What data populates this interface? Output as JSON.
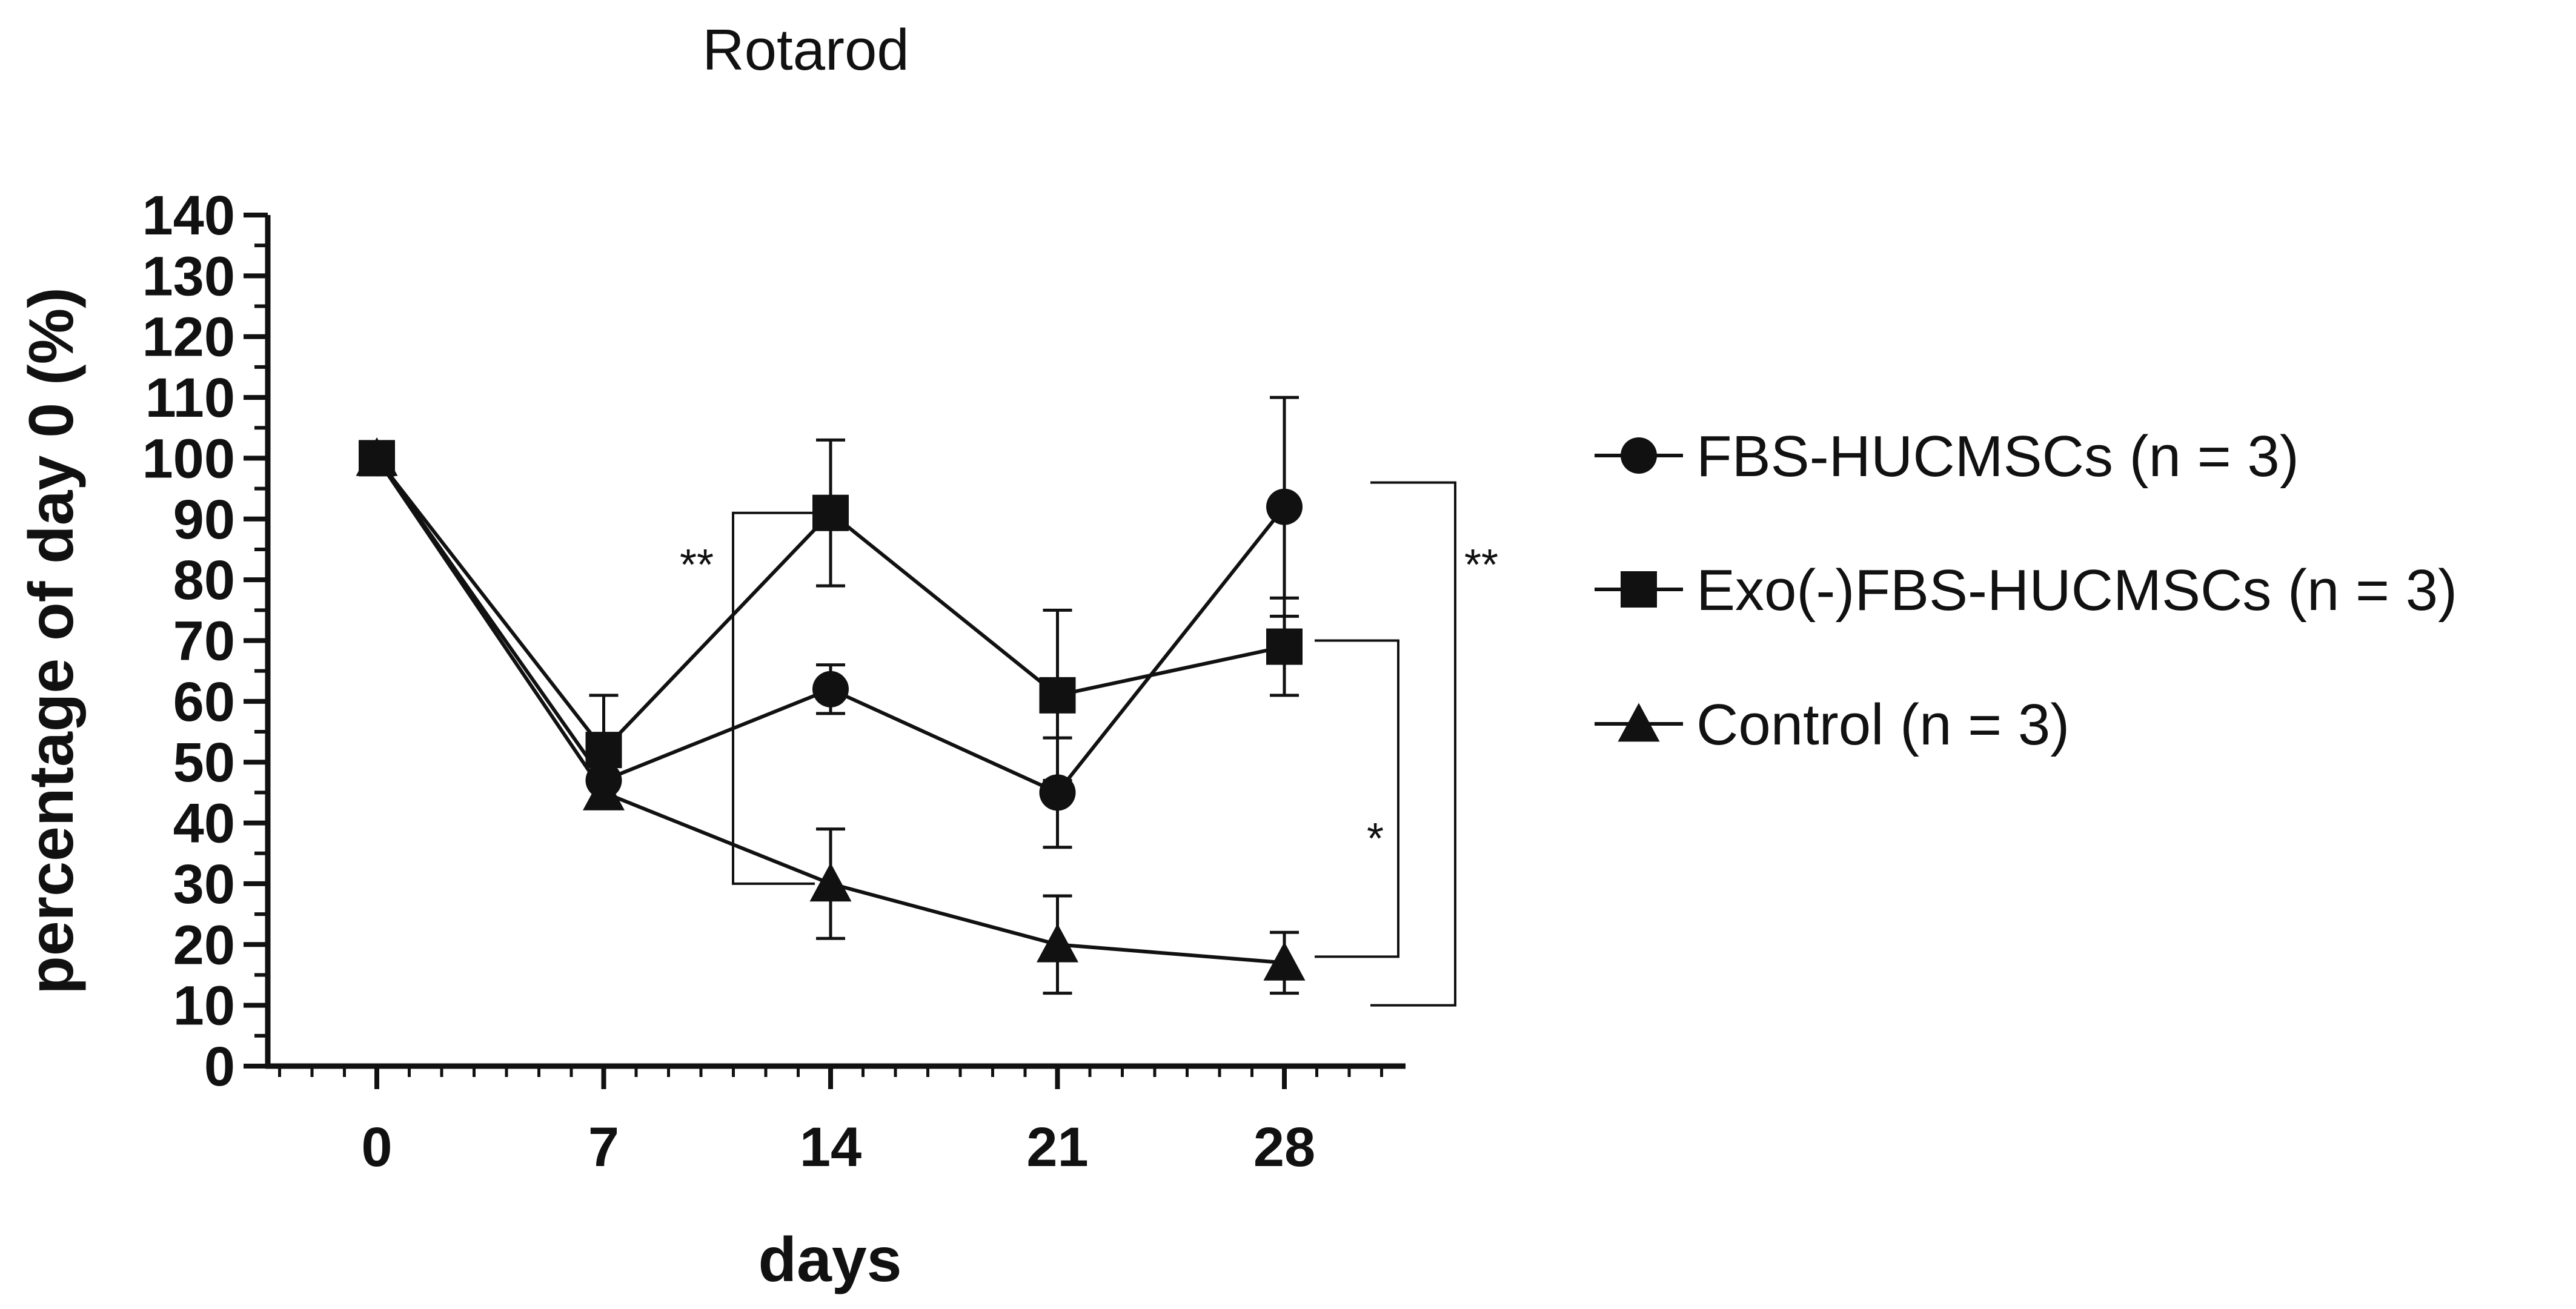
{
  "chart_data": {
    "type": "line",
    "title": "Rotarod",
    "xlabel": "days",
    "ylabel": "percentage of day 0 (%)",
    "x": [
      0,
      7,
      14,
      21,
      28
    ],
    "x_ticks": [
      "0",
      "7",
      "14",
      "21",
      "28"
    ],
    "ylim": [
      0,
      140
    ],
    "y_ticks": [
      "0",
      "10",
      "20",
      "30",
      "40",
      "50",
      "60",
      "70",
      "80",
      "90",
      "100",
      "110",
      "120",
      "130",
      "140"
    ],
    "grid": false,
    "legend_position": "right",
    "series": [
      {
        "name": "FBS-HUCMSCs  (n = 3)",
        "marker": "circle",
        "values": [
          100,
          47,
          62,
          45,
          92
        ],
        "error": [
          0,
          0,
          4,
          9,
          18
        ]
      },
      {
        "name": "Exo(-)FBS-HUCMSCs (n = 3)",
        "marker": "square",
        "values": [
          100,
          52,
          91,
          61,
          69
        ],
        "error": [
          0,
          9,
          12,
          14,
          8
        ]
      },
      {
        "name": "Control (n = 3)",
        "marker": "triangle",
        "values": [
          100,
          45,
          30,
          20,
          17
        ],
        "error": [
          0,
          0,
          9,
          8,
          5
        ]
      }
    ],
    "annotations": [
      {
        "label": "**",
        "between": [
          "Exo(-)FBS-HUCMSCs (n = 3)",
          "Control (n = 3)"
        ],
        "at_x": 14
      },
      {
        "label": "**",
        "between": [
          "FBS-HUCMSCs  (n = 3)",
          "Control (n = 3)"
        ],
        "at_x": 28
      },
      {
        "label": "*",
        "between": [
          "Exo(-)FBS-HUCMSCs (n = 3)",
          "Control (n = 3)"
        ],
        "at_x": 28
      }
    ],
    "colors": {
      "line": "#111111",
      "background": "#ffffff"
    }
  }
}
